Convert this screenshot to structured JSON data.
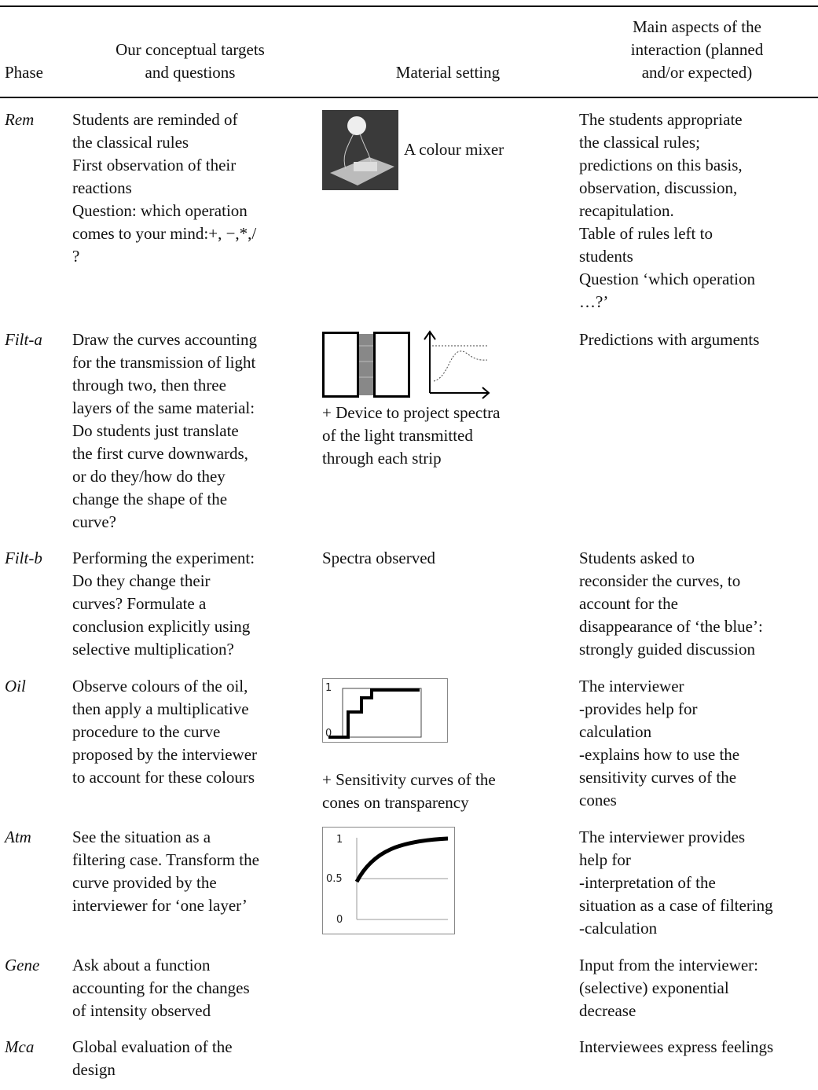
{
  "table": {
    "header": [
      [
        "Phase"
      ],
      [
        "Our conceptual targets",
        "and questions"
      ],
      [
        "Material setting"
      ],
      [
        "Main aspects of the",
        "interaction (planned",
        "and/or expected)"
      ]
    ],
    "rows": [
      {
        "phase": "Rem",
        "targets": [
          "Students are reminded of",
          "the classical rules",
          "First observation of their",
          "reactions",
          "Question: which operation",
          "comes to your mind:+, −,*,/",
          "?"
        ],
        "material": [
          "A colour mixer"
        ],
        "interaction": [
          "The students appropriate",
          "the classical rules;",
          "predictions on this basis,",
          "observation, discussion,",
          "recapitulation.",
          "Table of rules left to",
          "students",
          "Question ‘which operation",
          "…?’"
        ]
      },
      {
        "phase": "Filt-a",
        "targets": [
          "Draw the curves accounting",
          "for the transmission of light",
          "through two, then three",
          "layers of the same material:",
          "Do students just translate",
          "the first curve downwards,",
          "or do they/how do they",
          "change the shape of the",
          "curve?"
        ],
        "material": [
          "+ Device to project spectra",
          "of the light transmitted",
          "through each strip"
        ],
        "interaction": [
          "Predictions with arguments"
        ]
      },
      {
        "phase": "Filt-b",
        "targets": [
          "Performing the experiment:",
          "Do they change their",
          "curves? Formulate a",
          "conclusion explicitly using",
          "selective multiplication?"
        ],
        "material": [
          "Spectra observed"
        ],
        "interaction": [
          "Students asked to",
          "reconsider the curves, to",
          "account for the",
          "disappearance of ‘the blue’:",
          "strongly guided discussion"
        ]
      },
      {
        "phase": "Oil",
        "targets": [
          "Observe colours of the oil,",
          "then apply a multiplicative",
          "procedure to the curve",
          "proposed by the interviewer",
          "to account for these colours"
        ],
        "material": [
          "+ Sensitivity curves of the",
          "cones on transparency"
        ],
        "figure_labels": [
          "1",
          "0"
        ],
        "interaction": [
          "The interviewer",
          "-provides help for",
          "calculation",
          "-explains how to use the",
          "sensitivity curves of the",
          "cones"
        ]
      },
      {
        "phase": "Atm",
        "targets": [
          "See the situation as a",
          "filtering case. Transform the",
          "curve provided by the",
          "interviewer for ‘one layer’"
        ],
        "figure_labels": [
          "1",
          "0.5",
          "0"
        ],
        "interaction": [
          "The interviewer provides",
          "help for",
          "-interpretation of the",
          "situation as a case of filtering",
          "-calculation"
        ]
      },
      {
        "phase": "Gene",
        "targets": [
          "Ask about a function",
          "accounting for the changes",
          "of intensity observed"
        ],
        "interaction": [
          "Input from the interviewer:",
          "(selective) exponential",
          "decrease"
        ]
      },
      {
        "phase": "Mca",
        "targets": [
          "Global evaluation of the",
          "design"
        ],
        "interaction": [
          "Interviewees express feelings"
        ]
      }
    ]
  }
}
